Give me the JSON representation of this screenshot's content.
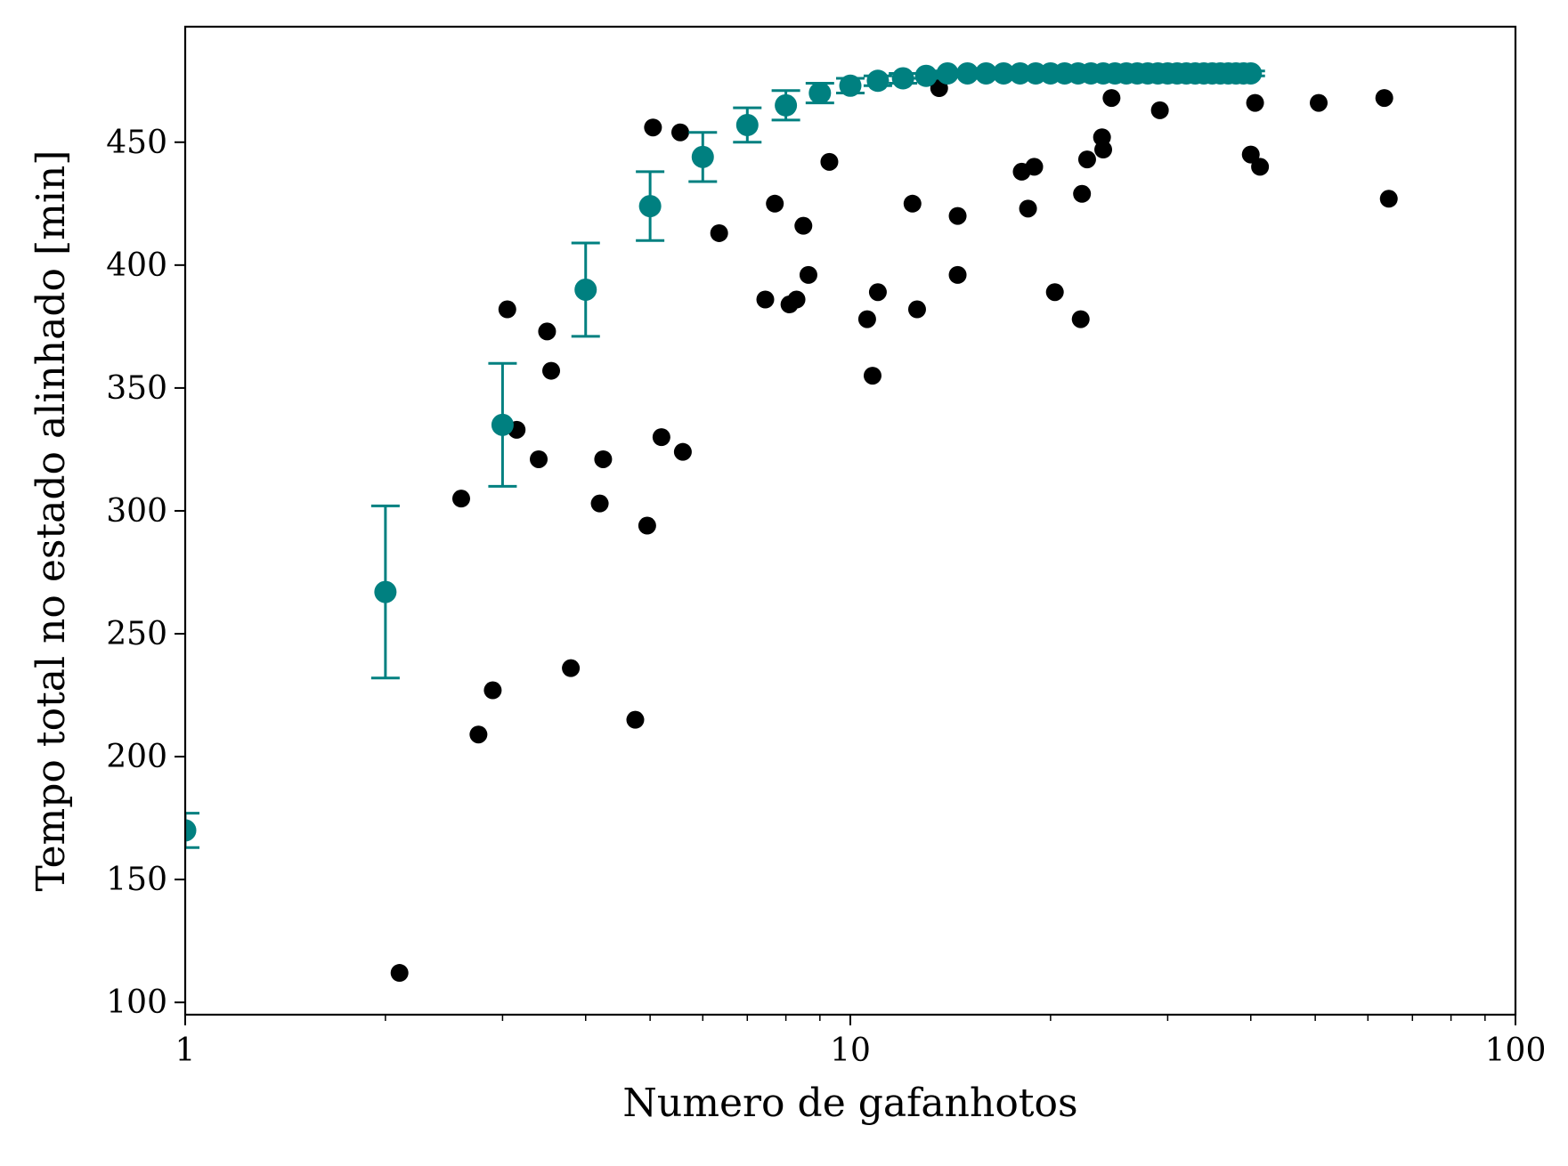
{
  "chart_data": {
    "type": "scatter",
    "xlabel": "Numero de gafanhotos",
    "ylabel": "Tempo total no estado alinhado [min]",
    "xscale": "log",
    "xlim": [
      1,
      100
    ],
    "ylim": [
      95,
      497
    ],
    "xticks": [
      1,
      10,
      100
    ],
    "xtick_labels": [
      "1",
      "10",
      "100"
    ],
    "yticks": [
      100,
      150,
      200,
      250,
      300,
      350,
      400,
      450
    ],
    "ytick_labels": [
      "100",
      "150",
      "200",
      "250",
      "300",
      "350",
      "400",
      "450"
    ],
    "grid": false,
    "legend": "none",
    "colors": {
      "mean_series": "#008080",
      "observations": "#000000"
    },
    "series": [
      {
        "kind": "errorbar",
        "color": "#008080",
        "x": [
          1,
          2,
          3,
          4,
          5,
          6,
          7,
          8,
          9,
          10,
          11,
          12,
          13,
          14,
          15,
          16,
          17,
          18,
          19,
          20,
          21,
          22,
          23,
          24,
          25,
          26,
          27,
          28,
          29,
          30,
          31,
          32,
          33,
          34,
          35,
          36,
          37,
          38,
          39,
          40
        ],
        "y": [
          170,
          267,
          335,
          390,
          424,
          444,
          457,
          465,
          470,
          473,
          475,
          476,
          477,
          478,
          478,
          478,
          478,
          478,
          478,
          478,
          478,
          478,
          478,
          478,
          478,
          478,
          478,
          478,
          478,
          478,
          478,
          478,
          478,
          478,
          478,
          478,
          478,
          478,
          478,
          478
        ],
        "yerr": [
          7,
          35,
          25,
          19,
          14,
          10,
          7,
          6,
          4,
          3,
          2,
          2,
          1,
          1,
          1,
          1,
          1,
          1,
          1,
          1,
          1,
          1,
          1,
          1,
          1,
          1,
          1,
          1,
          1,
          1,
          1,
          1,
          1,
          1,
          1,
          1,
          1,
          1,
          1,
          1
        ]
      },
      {
        "kind": "points",
        "color": "#000000",
        "x": [
          2.1,
          2.6,
          2.76,
          2.9,
          3.05,
          3.15,
          3.4,
          3.5,
          3.55,
          3.8,
          4.2,
          4.25,
          4.75,
          4.95,
          5.05,
          5.2,
          5.55,
          5.6,
          6.35,
          7.45,
          7.7,
          8.1,
          8.3,
          8.5,
          8.65,
          9.3,
          10.6,
          10.8,
          11.0,
          12.4,
          12.6,
          13.6,
          14.5,
          14.5,
          18.1,
          18.5,
          18.9,
          20.3,
          22.2,
          22.3,
          22.7,
          23.9,
          24.0,
          24.7,
          29.2,
          40.0,
          40.6,
          41.3,
          50.6,
          63.5,
          64.5
        ],
        "y": [
          112,
          305,
          209,
          227,
          382,
          333,
          321,
          373,
          357,
          236,
          303,
          321,
          215,
          294,
          456,
          330,
          454,
          324,
          413,
          386,
          425,
          384,
          386,
          416,
          396,
          442,
          378,
          355,
          389,
          425,
          382,
          472,
          396,
          420,
          438,
          423,
          440,
          389,
          378,
          429,
          443,
          452,
          447,
          468,
          463,
          445,
          466,
          440,
          466,
          468,
          427
        ]
      }
    ]
  }
}
